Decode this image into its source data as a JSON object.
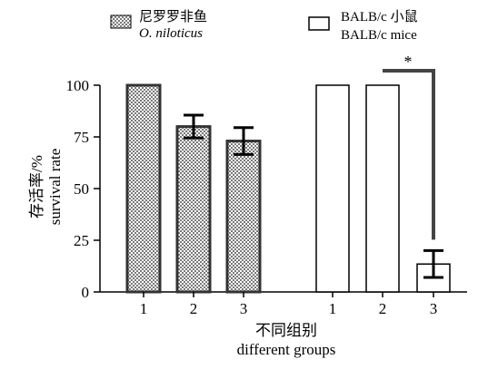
{
  "chart_data": {
    "type": "bar",
    "title": "",
    "ylabel": [
      "存活率/%",
      "survival rate"
    ],
    "xlabel": [
      "不同组别",
      "different groups"
    ],
    "ylim": [
      0,
      100
    ],
    "yticks": [
      0,
      25,
      50,
      75,
      100
    ],
    "grid": false,
    "legend_position": "top",
    "groups": [
      {
        "name_cn": "尼罗罗非鱼",
        "name_en": "O. niloticus",
        "pattern": "checkered",
        "categories": [
          "1",
          "2",
          "3"
        ],
        "values": [
          100,
          80,
          73
        ],
        "errors": [
          0,
          5.5,
          6.5
        ]
      },
      {
        "name_cn": "BALB/c 小鼠",
        "name_en": "BALB/c mice",
        "pattern": "open",
        "categories": [
          "1",
          "2",
          "3"
        ],
        "values": [
          100,
          100,
          13.5
        ],
        "errors": [
          0,
          0,
          6.5
        ]
      }
    ],
    "annotations": [
      {
        "text": "*",
        "between": [
          4,
          5
        ]
      }
    ]
  }
}
